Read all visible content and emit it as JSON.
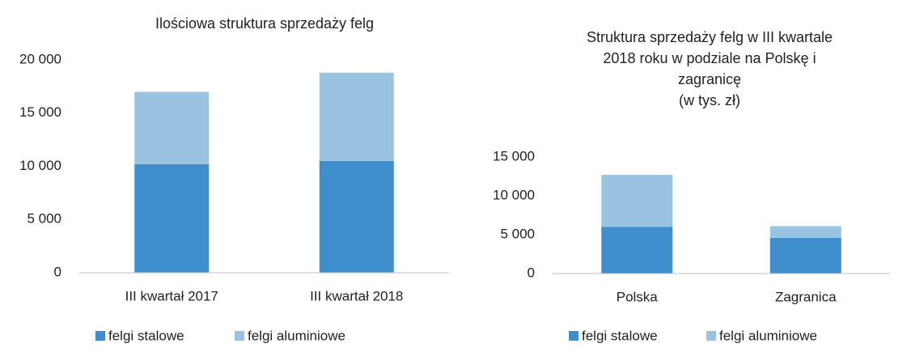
{
  "chart_data": [
    {
      "type": "bar",
      "stacked": true,
      "title": [
        "Ilościowa struktura sprzedaży felg"
      ],
      "categories": [
        "III kwartał 2017",
        "III kwartał 2018"
      ],
      "series": [
        {
          "name": "felgi stalowe",
          "color": "#3f8fce",
          "values": [
            10200,
            10500
          ]
        },
        {
          "name": "felgi aluminiowe",
          "color": "#9ac3e2",
          "values": [
            6800,
            8300
          ]
        }
      ],
      "ylim": [
        0,
        20000
      ],
      "yticks": [
        0,
        {
          "value": 5000,
          "label": "5 000"
        },
        {
          "value": 10000,
          "label": "10 000"
        },
        {
          "value": 15000,
          "label": "15 000"
        },
        {
          "value": 20000,
          "label": "20 000"
        }
      ],
      "grid": false,
      "legend": "bottom"
    },
    {
      "type": "bar",
      "stacked": true,
      "title": [
        "Struktura sprzedaży felg w III kwartale",
        "2018 roku w podziale na Polskę i",
        "zagranicę",
        "(w tys. zł)"
      ],
      "categories": [
        "Polska",
        "Zagranica"
      ],
      "series": [
        {
          "name": "felgi stalowe",
          "color": "#3f8fce",
          "values": [
            6000,
            4600
          ]
        },
        {
          "name": "felgi aluminiowe",
          "color": "#9ac3e2",
          "values": [
            6700,
            1500
          ]
        }
      ],
      "ylim": [
        0,
        15000
      ],
      "yticks": [
        0,
        {
          "value": 5000,
          "label": "5 000"
        },
        {
          "value": 10000,
          "label": "10 000"
        },
        {
          "value": 15000,
          "label": "15 000"
        }
      ],
      "grid": false,
      "legend": "bottom"
    }
  ]
}
